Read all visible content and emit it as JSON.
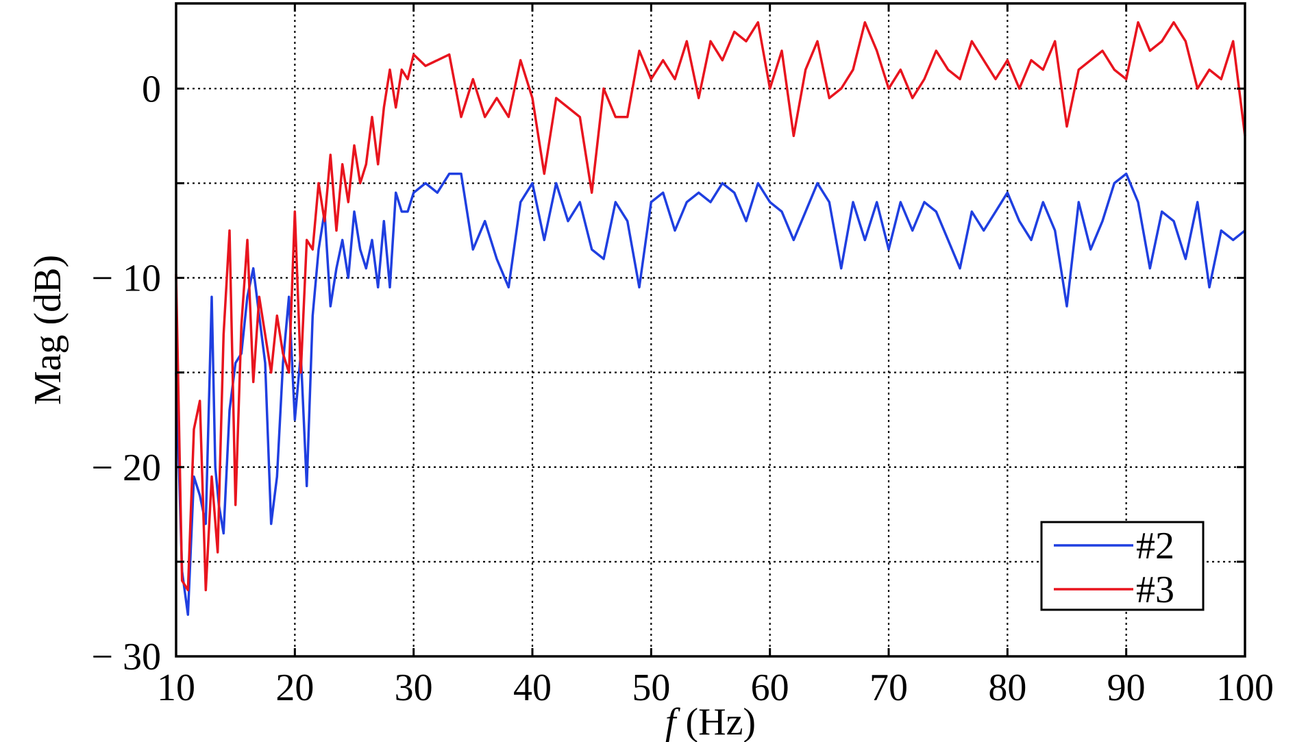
{
  "chart_data": {
    "type": "line",
    "xlabel_italic": "f",
    "xlabel_unit": " (Hz)",
    "ylabel": "Mag (dB)",
    "xlim": [
      10,
      100
    ],
    "ylim": [
      -30,
      4.5
    ],
    "xticks": [
      10,
      20,
      30,
      40,
      50,
      60,
      70,
      80,
      90,
      100
    ],
    "xtick_labels": [
      "10",
      "20",
      "30",
      "40",
      "50",
      "60",
      "70",
      "80",
      "90",
      "100"
    ],
    "yticks": [
      0,
      -10,
      -20,
      -30
    ],
    "ytick_labels": [
      "0",
      "− 10",
      "− 20",
      "− 30"
    ],
    "ygrid": [
      0,
      -5,
      -10,
      -15,
      -20,
      -25
    ],
    "grid": true,
    "legend_position": "bottom-right",
    "series": [
      {
        "name": "#2",
        "color": "#1f3fe0",
        "x": [
          10,
          10.5,
          11,
          11.5,
          12,
          12.5,
          13,
          13.3,
          13.6,
          14,
          14.5,
          15,
          15.5,
          16,
          16.5,
          17,
          17.5,
          18,
          18.5,
          19,
          19.5,
          20,
          20.5,
          21,
          21.5,
          22,
          22.5,
          23,
          23.5,
          24,
          24.5,
          25,
          25.5,
          26,
          26.5,
          27,
          27.5,
          28,
          28.5,
          29,
          29.5,
          30,
          31,
          32,
          33,
          34,
          35,
          36,
          37,
          38,
          39,
          40,
          41,
          42,
          43,
          44,
          45,
          46,
          47,
          48,
          49,
          50,
          51,
          52,
          53,
          54,
          55,
          56,
          57,
          58,
          59,
          60,
          61,
          62,
          63,
          64,
          65,
          66,
          67,
          68,
          69,
          70,
          71,
          72,
          73,
          74,
          75,
          76,
          77,
          78,
          79,
          80,
          81,
          82,
          83,
          84,
          85,
          86,
          87,
          88,
          89,
          90,
          91,
          92,
          93,
          94,
          95,
          96,
          97,
          98,
          99,
          100
        ],
        "y": [
          -15,
          -25.5,
          -27.8,
          -20.5,
          -21.5,
          -23,
          -11,
          -20,
          -22,
          -23.5,
          -17,
          -14.5,
          -14,
          -11,
          -9.5,
          -12,
          -14.5,
          -23,
          -20.5,
          -14.5,
          -11,
          -17.5,
          -14,
          -21,
          -12,
          -8.5,
          -6.5,
          -11.5,
          -9.5,
          -8,
          -10,
          -6.5,
          -8.5,
          -9.5,
          -8,
          -10.5,
          -7,
          -10.5,
          -5.5,
          -6.5,
          -6.5,
          -5.5,
          -5,
          -5.5,
          -4.5,
          -4.5,
          -8.5,
          -7,
          -9,
          -10.5,
          -6,
          -5,
          -8,
          -5,
          -7,
          -6,
          -8.5,
          -9,
          -6,
          -7,
          -10.5,
          -6,
          -5.5,
          -7.5,
          -6,
          -5.5,
          -6,
          -5,
          -5.5,
          -7,
          -5,
          -6,
          -6.5,
          -8,
          -6.5,
          -5,
          -6,
          -9.5,
          -6,
          -8,
          -6,
          -8.5,
          -6,
          -7.5,
          -6,
          -6.5,
          -8,
          -9.5,
          -6.5,
          -7.5,
          -6.5,
          -5.5,
          -7,
          -8,
          -6,
          -7.5,
          -11.5,
          -6,
          -8.5,
          -7,
          -5,
          -4.5,
          -6,
          -9.5,
          -6.5,
          -7,
          -9,
          -6,
          -10.5,
          -7.5,
          -8,
          -7.5
        ]
      },
      {
        "name": "#3",
        "color": "#e8141e",
        "x": [
          10,
          10.5,
          11,
          11.5,
          12,
          12.5,
          13,
          13.5,
          14,
          14.5,
          15,
          15.5,
          16,
          16.5,
          17,
          17.5,
          18,
          18.5,
          19,
          19.5,
          20,
          20.5,
          21,
          21.5,
          22,
          22.5,
          23,
          23.5,
          24,
          24.5,
          25,
          25.5,
          26,
          26.5,
          27,
          27.5,
          28,
          28.5,
          29,
          29.5,
          30,
          31,
          32,
          33,
          34,
          35,
          36,
          37,
          38,
          39,
          40,
          41,
          42,
          43,
          44,
          45,
          46,
          47,
          48,
          49,
          50,
          51,
          52,
          53,
          54,
          55,
          56,
          57,
          58,
          59,
          60,
          61,
          62,
          63,
          64,
          65,
          66,
          67,
          68,
          69,
          70,
          71,
          72,
          73,
          74,
          75,
          76,
          77,
          78,
          79,
          80,
          81,
          82,
          83,
          84,
          85,
          86,
          87,
          88,
          89,
          90,
          91,
          92,
          93,
          94,
          95,
          96,
          97,
          98,
          99,
          100
        ],
        "y": [
          -9.8,
          -26,
          -26.5,
          -18,
          -16.5,
          -26.5,
          -20.5,
          -24.5,
          -13,
          -7.5,
          -22,
          -12.5,
          -8,
          -15.5,
          -11,
          -13,
          -15,
          -12,
          -14,
          -15,
          -6.5,
          -15,
          -8,
          -8.5,
          -5,
          -7,
          -3.5,
          -7.5,
          -4,
          -6,
          -3,
          -5,
          -4,
          -1.5,
          -4,
          -1,
          1,
          -1,
          1,
          0.5,
          1.8,
          1.2,
          1.5,
          1.8,
          -1.5,
          0.5,
          -1.5,
          -0.5,
          -1.5,
          1.5,
          -0.5,
          -4.5,
          -0.5,
          -1,
          -1.5,
          -5.5,
          0,
          -1.5,
          -1.5,
          2,
          0.5,
          1.5,
          0.5,
          2.5,
          -0.5,
          2.5,
          1.5,
          3,
          2.5,
          3.5,
          0,
          2,
          -2.5,
          1,
          2.5,
          -0.5,
          0,
          1,
          3.5,
          2,
          0,
          1,
          -0.5,
          0.5,
          2,
          1,
          0.5,
          2.5,
          1.5,
          0.5,
          1.5,
          0,
          1.5,
          1,
          2.5,
          -2,
          1,
          1.5,
          2,
          1,
          0.5,
          3.5,
          2,
          2.5,
          3.5,
          2.5,
          0,
          1,
          0.5,
          2.5,
          -2.5
        ]
      }
    ]
  }
}
